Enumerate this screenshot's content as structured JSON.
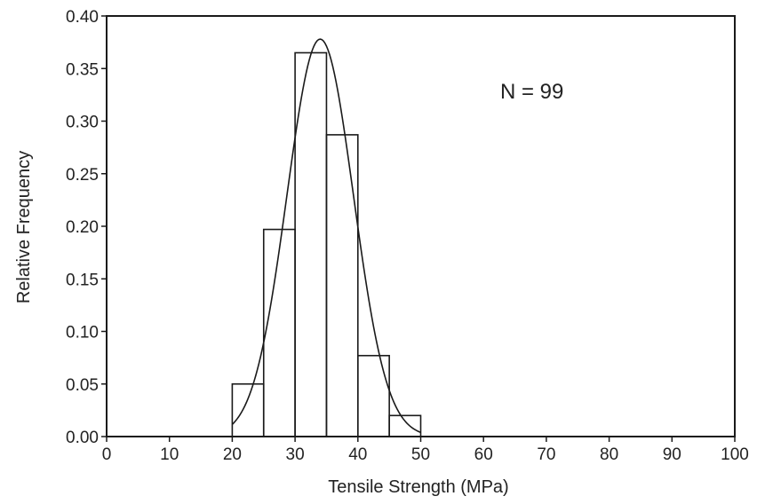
{
  "chart_data": {
    "type": "bar",
    "title": "",
    "xlabel": "Tensile Strength (MPa)",
    "ylabel": "Relative Frequency",
    "xlim": [
      0,
      100
    ],
    "ylim": [
      0,
      0.4
    ],
    "x_ticks": [
      "0",
      "10",
      "20",
      "30",
      "40",
      "50",
      "60",
      "70",
      "80",
      "90",
      "100"
    ],
    "y_ticks": [
      "0.00",
      "0.05",
      "0.10",
      "0.15",
      "0.20",
      "0.25",
      "0.30",
      "0.35",
      "0.40"
    ],
    "bins": [
      {
        "from": 20,
        "to": 25,
        "value": 0.05
      },
      {
        "from": 25,
        "to": 30,
        "value": 0.197
      },
      {
        "from": 30,
        "to": 35,
        "value": 0.365
      },
      {
        "from": 35,
        "to": 40,
        "value": 0.287
      },
      {
        "from": 40,
        "to": 45,
        "value": 0.077
      },
      {
        "from": 45,
        "to": 50,
        "value": 0.02
      }
    ],
    "curve": {
      "type": "normal",
      "mean": 34.0,
      "sd": 5.3,
      "peak": 0.378,
      "x_range": [
        20,
        50
      ]
    },
    "annotation": "N = 99",
    "grid": false
  },
  "colors": {
    "line": "#1a1a1a",
    "text": "#222222"
  }
}
